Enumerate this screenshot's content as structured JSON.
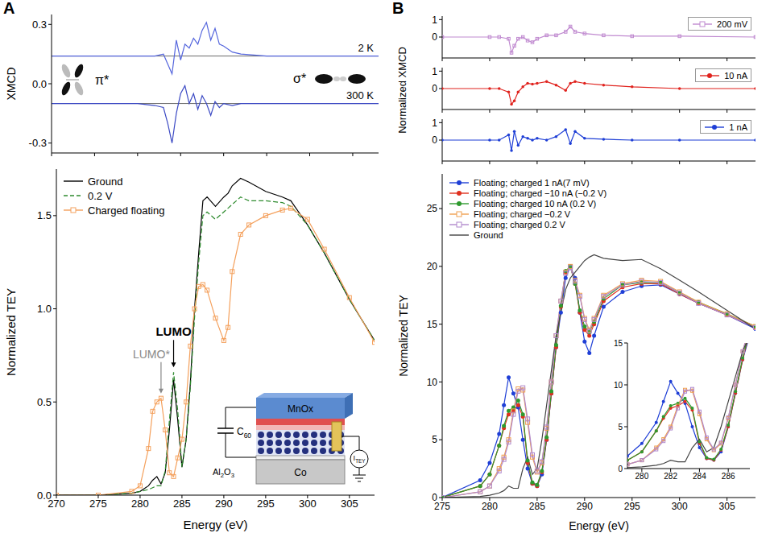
{
  "panel_labels": [
    "A",
    "B"
  ],
  "xmcd_b_y_label": "Normalized XMCD",
  "inset_diagram": {
    "top_layer": [
      {
        "t": "MnOx"
      }
    ],
    "capacitor": [
      {
        "t": "C"
      },
      {
        "t": "60",
        "sub": true
      }
    ],
    "barrier": [
      {
        "t": "Al"
      },
      {
        "t": "2",
        "sub": true
      },
      {
        "t": "O"
      },
      {
        "t": "3",
        "sub": true
      }
    ],
    "substrate": [
      {
        "t": "Co"
      }
    ],
    "meter": [
      {
        "t": "I"
      },
      {
        "t": "TEY",
        "sub": true
      }
    ]
  },
  "chart_data": [
    {
      "type": "line",
      "y_label": "XMCD",
      "tick_labels": "y",
      "xlim": [
        270,
        308
      ],
      "xticks": [
        270,
        275,
        280,
        285,
        290,
        295,
        300,
        305
      ],
      "ylim": [
        -0.35,
        0.35
      ],
      "yticks": [
        {
          "value": -0.3,
          "label": "-0.3"
        },
        {
          "value": 0,
          "label": "0.0"
        },
        {
          "value": 0.3,
          "label": "0.3"
        }
      ],
      "x": [
        270,
        275,
        280,
        282,
        283,
        283.5,
        284,
        284.5,
        285,
        285.5,
        286,
        286.5,
        287,
        287.5,
        288,
        288.5,
        289,
        289.5,
        290,
        291,
        292,
        295,
        300,
        308
      ],
      "series": [
        {
          "name": "2 K",
          "color": "#5566dd",
          "baseline": 0.14,
          "values": [
            0.14,
            0.14,
            0.14,
            0.14,
            0.15,
            0.1,
            0.05,
            0.22,
            0.12,
            0.2,
            0.18,
            0.23,
            0.2,
            0.27,
            0.31,
            0.22,
            0.28,
            0.2,
            0.19,
            0.16,
            0.15,
            0.14,
            0.14,
            0.14
          ]
        },
        {
          "name": "300 K",
          "color": "#3c4ac4",
          "baseline": -0.1,
          "values": [
            -0.1,
            -0.1,
            -0.1,
            -0.11,
            -0.12,
            -0.2,
            -0.3,
            -0.15,
            -0.05,
            -0.01,
            -0.1,
            -0.05,
            -0.13,
            -0.06,
            -0.1,
            -0.16,
            -0.09,
            -0.12,
            -0.1,
            -0.11,
            -0.1,
            -0.1,
            -0.1,
            -0.1
          ]
        }
      ],
      "annotations": [
        {
          "text": "π*"
        },
        {
          "text": "σ*"
        }
      ]
    },
    {
      "type": "line",
      "x_label": "Energy (eV)",
      "y_label": "Normalized TEY",
      "legend": "top-left",
      "xlim": [
        270,
        308
      ],
      "xticks": [
        270,
        275,
        280,
        285,
        290,
        295,
        300,
        305
      ],
      "ylim": [
        0,
        1.75
      ],
      "yticks": [
        {
          "value": 0,
          "label": "0.0"
        },
        {
          "value": 0.5,
          "label": "0.5"
        },
        {
          "value": 1,
          "label": "1.0"
        },
        {
          "value": 1.5,
          "label": "1.5"
        }
      ],
      "x": [
        270,
        275,
        279,
        280,
        281,
        281.5,
        282,
        282.5,
        283,
        283.5,
        284,
        284.5,
        285,
        285.5,
        286,
        286.5,
        287,
        287.5,
        288,
        289,
        290,
        290.5,
        291,
        292,
        293,
        295,
        297,
        298,
        300,
        302,
        305,
        308
      ],
      "series": [
        {
          "name": "Ground",
          "color": "#000000",
          "line_style": "solid",
          "values": [
            0,
            0,
            0.01,
            0.02,
            0.05,
            0.08,
            0.1,
            0.06,
            0.12,
            0.35,
            0.62,
            0.4,
            0.15,
            0.3,
            0.6,
            1.0,
            1.3,
            1.58,
            1.6,
            1.55,
            1.6,
            1.62,
            1.66,
            1.7,
            1.68,
            1.63,
            1.6,
            1.58,
            1.45,
            1.3,
            1.05,
            0.83
          ]
        },
        {
          "name": "0.2 V",
          "color": "#2e8b2e",
          "line_style": "dashed",
          "values": [
            0,
            0,
            0.01,
            0.02,
            0.03,
            0.04,
            0.05,
            0.05,
            0.13,
            0.4,
            0.66,
            0.45,
            0.15,
            0.3,
            0.58,
            0.95,
            1.25,
            1.5,
            1.52,
            1.48,
            1.52,
            1.54,
            1.56,
            1.6,
            1.58,
            1.58,
            1.57,
            1.55,
            1.45,
            1.3,
            1.05,
            0.83
          ]
        },
        {
          "name": "Charged floating",
          "color": "#f4a05c",
          "line_style": "solid",
          "marker": "open_square",
          "values": [
            0,
            0,
            0.02,
            0.05,
            0.25,
            0.45,
            0.5,
            0.52,
            0.35,
            0.12,
            0.1,
            0.2,
            0.3,
            0.5,
            0.8,
            1.0,
            1.12,
            1.13,
            1.1,
            0.95,
            0.83,
            0.9,
            1.2,
            1.4,
            1.45,
            1.5,
            1.53,
            1.54,
            1.48,
            1.32,
            1.06,
            0.82
          ]
        }
      ],
      "annotations": [
        {
          "text": "LUMO",
          "x": 284,
          "y": 0.66,
          "color": "#000000"
        },
        {
          "text": "LUMO*",
          "x": 282.5,
          "y": 0.52,
          "color": "#888888"
        }
      ]
    },
    {
      "type": "line",
      "tick_labels": "y",
      "legend": "top-right",
      "xlim": [
        275,
        308
      ],
      "xticks": [
        275,
        280,
        285,
        290,
        295,
        300,
        305
      ],
      "ylim": [
        -1.2,
        1.2
      ],
      "yticks": [
        0,
        1
      ],
      "x": [
        275,
        280,
        281,
        282,
        282.3,
        282.6,
        283,
        283.5,
        284,
        284.5,
        285,
        286,
        287,
        288,
        288.5,
        289,
        290,
        292,
        295,
        300,
        308
      ],
      "series": [
        {
          "name": "200 mV",
          "color": "#c08ad0",
          "marker": "open_square",
          "values": [
            0,
            0,
            0,
            -0.1,
            -0.9,
            -0.5,
            -0.1,
            0,
            -0.2,
            -0.3,
            -0.1,
            0.1,
            0.1,
            0.3,
            0.6,
            0.3,
            0.2,
            0.1,
            0.05,
            0.05,
            0
          ]
        }
      ]
    },
    {
      "type": "line",
      "tick_labels": "y",
      "legend": "top-right",
      "xlim": [
        275,
        308
      ],
      "xticks": [
        275,
        280,
        285,
        290,
        295,
        300,
        305
      ],
      "ylim": [
        -1.2,
        1.2
      ],
      "yticks": [
        0,
        1
      ],
      "x": [
        275,
        280,
        281,
        282,
        282.3,
        282.6,
        283,
        283.5,
        284,
        284.5,
        285,
        286,
        287,
        288,
        288.5,
        289,
        290,
        292,
        295,
        300,
        308
      ],
      "series": [
        {
          "name": "10 nA",
          "color": "#e0231e",
          "marker": "circle",
          "values": [
            0,
            0,
            0,
            -0.2,
            -0.9,
            -0.7,
            -0.2,
            0.1,
            0.3,
            0.25,
            0.3,
            0.4,
            0.2,
            -0.1,
            0.3,
            0.4,
            0.3,
            0.2,
            0.1,
            0,
            0
          ]
        }
      ]
    },
    {
      "type": "line",
      "tick_labels": "y",
      "legend": "top-right",
      "xlim": [
        275,
        308
      ],
      "xticks": [
        275,
        280,
        285,
        290,
        295,
        300,
        305
      ],
      "ylim": [
        -1.2,
        1.2
      ],
      "yticks": [
        0,
        1
      ],
      "x": [
        275,
        280,
        281,
        282,
        282.3,
        282.6,
        283,
        283.5,
        284,
        284.5,
        285,
        286,
        287,
        288,
        288.5,
        289,
        290,
        292,
        295,
        300,
        308
      ],
      "series": [
        {
          "name": "1 nA",
          "color": "#1f3fd6",
          "marker": "circle",
          "values": [
            0,
            0,
            0,
            0.3,
            -0.6,
            0.5,
            -0.3,
            0.2,
            0.1,
            0,
            0.1,
            0,
            0.2,
            0.6,
            -0.2,
            0.5,
            0.1,
            0.05,
            0,
            0,
            0
          ]
        }
      ]
    },
    {
      "type": "line",
      "x_label": "Energy (eV)",
      "y_label": "Normalized TEY",
      "legend": "top-left",
      "xlim": [
        275,
        308
      ],
      "xticks": [
        275,
        280,
        285,
        290,
        295,
        300,
        305
      ],
      "ylim": [
        0,
        28
      ],
      "yticks": [
        0,
        5,
        10,
        15,
        20,
        25
      ],
      "x": [
        275,
        279,
        280,
        281,
        281.5,
        282,
        282.5,
        283,
        283.5,
        284,
        284.5,
        285,
        285.5,
        286,
        286.5,
        287,
        287.5,
        288,
        288.5,
        289,
        289.5,
        290,
        290.5,
        291,
        292,
        294,
        296,
        298,
        300,
        302,
        305,
        308
      ],
      "series": [
        {
          "name": "Floating; charged 1 nA(7 mV)",
          "color": "#1f3fd6",
          "marker": "circle",
          "values": [
            0,
            1.5,
            3,
            5.5,
            8,
            10.4,
            9,
            7.8,
            5,
            2.5,
            1.2,
            1,
            2,
            5,
            9,
            13,
            16,
            19,
            20,
            19,
            16,
            13.5,
            12.5,
            14,
            16.5,
            17.8,
            18.3,
            18.4,
            17.6,
            16.8,
            15.8,
            14.6
          ]
        },
        {
          "name": "Floating; charged −10 nA (−0.2 V)",
          "color": "#e0301e",
          "marker": "circle",
          "values": [
            0,
            1,
            2,
            4.5,
            6,
            7.2,
            7.5,
            8,
            7,
            3,
            1.2,
            1,
            2.2,
            5,
            9,
            13,
            16.5,
            19.5,
            20,
            18.5,
            16,
            14.5,
            14,
            15,
            17,
            18.2,
            18.5,
            18.5,
            17.6,
            16.8,
            15.8,
            14.7
          ]
        },
        {
          "name": "Floating; charged 10 nA (0.2 V)",
          "color": "#2e9a2e",
          "marker": "circle",
          "values": [
            0,
            1,
            2,
            4.5,
            6.2,
            7.5,
            7.8,
            8.4,
            7.2,
            3.2,
            1.3,
            1.1,
            2.3,
            5.2,
            9.2,
            13.2,
            16.6,
            19.6,
            20,
            18.5,
            16.2,
            14.8,
            14.3,
            15.2,
            17.2,
            18.4,
            18.6,
            18.6,
            17.7,
            16.9,
            15.9,
            14.8
          ]
        },
        {
          "name": "Floating; charged −0.2 V",
          "color": "#f0a050",
          "marker": "open_square",
          "values": [
            0,
            0.5,
            1,
            2.5,
            3.5,
            5,
            7.5,
            9.4,
            9.3,
            6.5,
            3.5,
            2.2,
            3,
            6,
            10,
            14,
            17,
            19.5,
            20,
            18.8,
            17.5,
            15.5,
            14.5,
            15.5,
            17.5,
            18.5,
            18.8,
            18.7,
            17.8,
            16.9,
            15.9,
            14.8
          ]
        },
        {
          "name": "Floating; charged 0.2 V",
          "color": "#b088cc",
          "marker": "open_square",
          "values": [
            0,
            0.5,
            1,
            2.3,
            3.3,
            4.8,
            7.2,
            9.2,
            9.5,
            6.8,
            3.7,
            2.3,
            3.1,
            6.1,
            10,
            14,
            17,
            19.4,
            19.9,
            18.7,
            17.4,
            15.4,
            14.4,
            15.4,
            17.4,
            18.4,
            18.7,
            18.6,
            17.7,
            16.8,
            15.8,
            14.7
          ]
        },
        {
          "name": "Ground",
          "color": "#444444",
          "values": [
            0,
            0.1,
            0.2,
            0.4,
            0.6,
            1.0,
            0.8,
            0.8,
            2.5,
            3.5,
            2.0,
            2.5,
            5,
            8,
            11,
            14,
            16,
            18,
            19,
            19.5,
            20,
            20.5,
            20.8,
            21,
            20.7,
            20.5,
            20.6,
            19.8,
            18.8,
            17.8,
            16.2,
            14.6
          ]
        }
      ],
      "inset": {
        "xlim": [
          279,
          287.5
        ],
        "xticks": [
          280,
          282,
          284,
          286
        ],
        "ylim": [
          0,
          15
        ],
        "yticks": [
          0,
          5,
          10,
          15
        ]
      }
    }
  ]
}
